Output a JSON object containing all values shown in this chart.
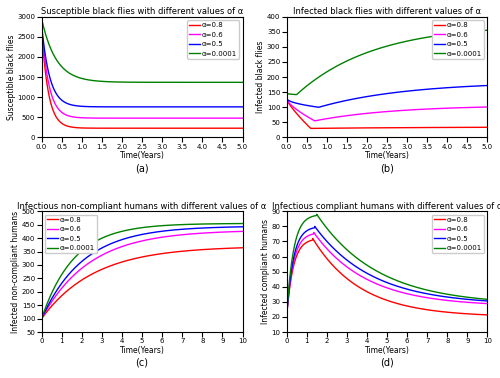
{
  "title_a": "Susceptible black flies with different values of α",
  "title_b": "Infected black flies with different values of α",
  "title_c": "Infectious non-compliant humans with different values of α",
  "title_d": "Infectious compliant humans with different values of α",
  "xlabel": "Time(Years)",
  "ylabel_a": "Susceptible black flies",
  "ylabel_b": "Infected black flies",
  "ylabel_c": "Infected non-compliant humans",
  "ylabel_d": "Infected compliant humans",
  "label_a": "(a)",
  "label_b": "(b)",
  "label_c": "(c)",
  "label_d": "(d)",
  "legend_labels": [
    "α=0.8",
    "α=0.6",
    "α=0.5",
    "α=0.0001"
  ],
  "colors": [
    "red",
    "magenta",
    "blue",
    "green"
  ],
  "t_max_ab": 5,
  "t_max_cd": 10,
  "ylim_a": [
    0,
    3000
  ],
  "ylim_b": [
    0,
    400
  ],
  "ylim_c": [
    50,
    500
  ],
  "ylim_d": [
    10,
    90
  ],
  "yticks_a": [
    0,
    500,
    1000,
    1500,
    2000,
    2500,
    3000
  ],
  "yticks_b": [
    0,
    50,
    100,
    150,
    200,
    250,
    300,
    350,
    400
  ],
  "yticks_c": [
    50,
    100,
    150,
    200,
    250,
    300,
    350,
    400,
    450,
    500
  ],
  "yticks_d": [
    10,
    20,
    30,
    40,
    50,
    60,
    70,
    80,
    90
  ],
  "xticks_ab": [
    0,
    0.5,
    1,
    1.5,
    2,
    2.5,
    3,
    3.5,
    4,
    4.5,
    5
  ],
  "xticks_cd": [
    0,
    1,
    2,
    3,
    4,
    5,
    6,
    7,
    8,
    9,
    10
  ],
  "background": "white"
}
